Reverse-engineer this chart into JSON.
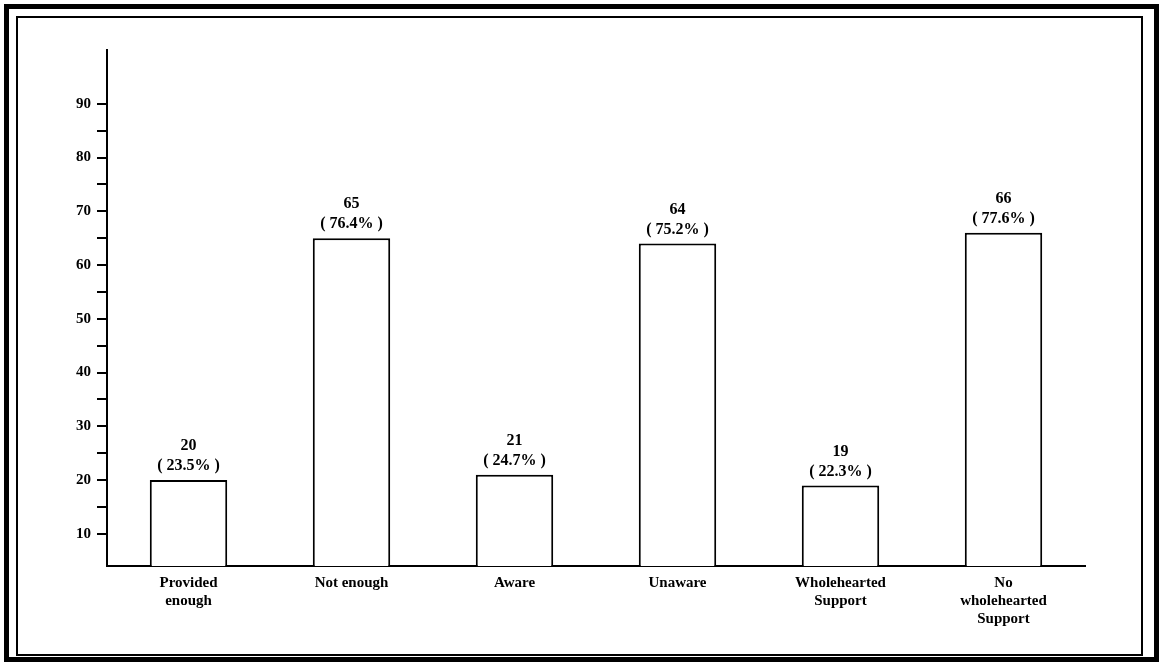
{
  "chart_data": {
    "type": "bar",
    "categories": [
      "Provided enough",
      "Not enough",
      "Aware",
      "Unaware",
      "Wholehearted Support",
      "No wholehearted Support"
    ],
    "values": [
      20,
      65,
      21,
      64,
      19,
      66
    ],
    "value_labels": [
      "20\n( 23.5% )",
      "65\n( 76.4% )",
      "21\n( 24.7% )",
      "64\n( 75.2% )",
      "19\n( 22.3% )",
      "66\n( 77.6% )"
    ],
    "color": "#ffffff",
    "ylim": [
      4,
      100
    ],
    "yticks": [
      {
        "value": 10,
        "label": "10"
      },
      {
        "value": 15,
        "label": null
      },
      {
        "value": 20,
        "label": "20"
      },
      {
        "value": 25,
        "label": null
      },
      {
        "value": 30,
        "label": "30"
      },
      {
        "value": 35,
        "label": null
      },
      {
        "value": 40,
        "label": "40"
      },
      {
        "value": 45,
        "label": null
      },
      {
        "value": 50,
        "label": "50"
      },
      {
        "value": 55,
        "label": null
      },
      {
        "value": 60,
        "label": "60"
      },
      {
        "value": 65,
        "label": null
      },
      {
        "value": 70,
        "label": "70"
      },
      {
        "value": 75,
        "label": null
      },
      {
        "value": 80,
        "label": "80"
      },
      {
        "value": 85,
        "label": null
      },
      {
        "value": 90,
        "label": "90"
      }
    ],
    "grid": false,
    "legend": false
  }
}
